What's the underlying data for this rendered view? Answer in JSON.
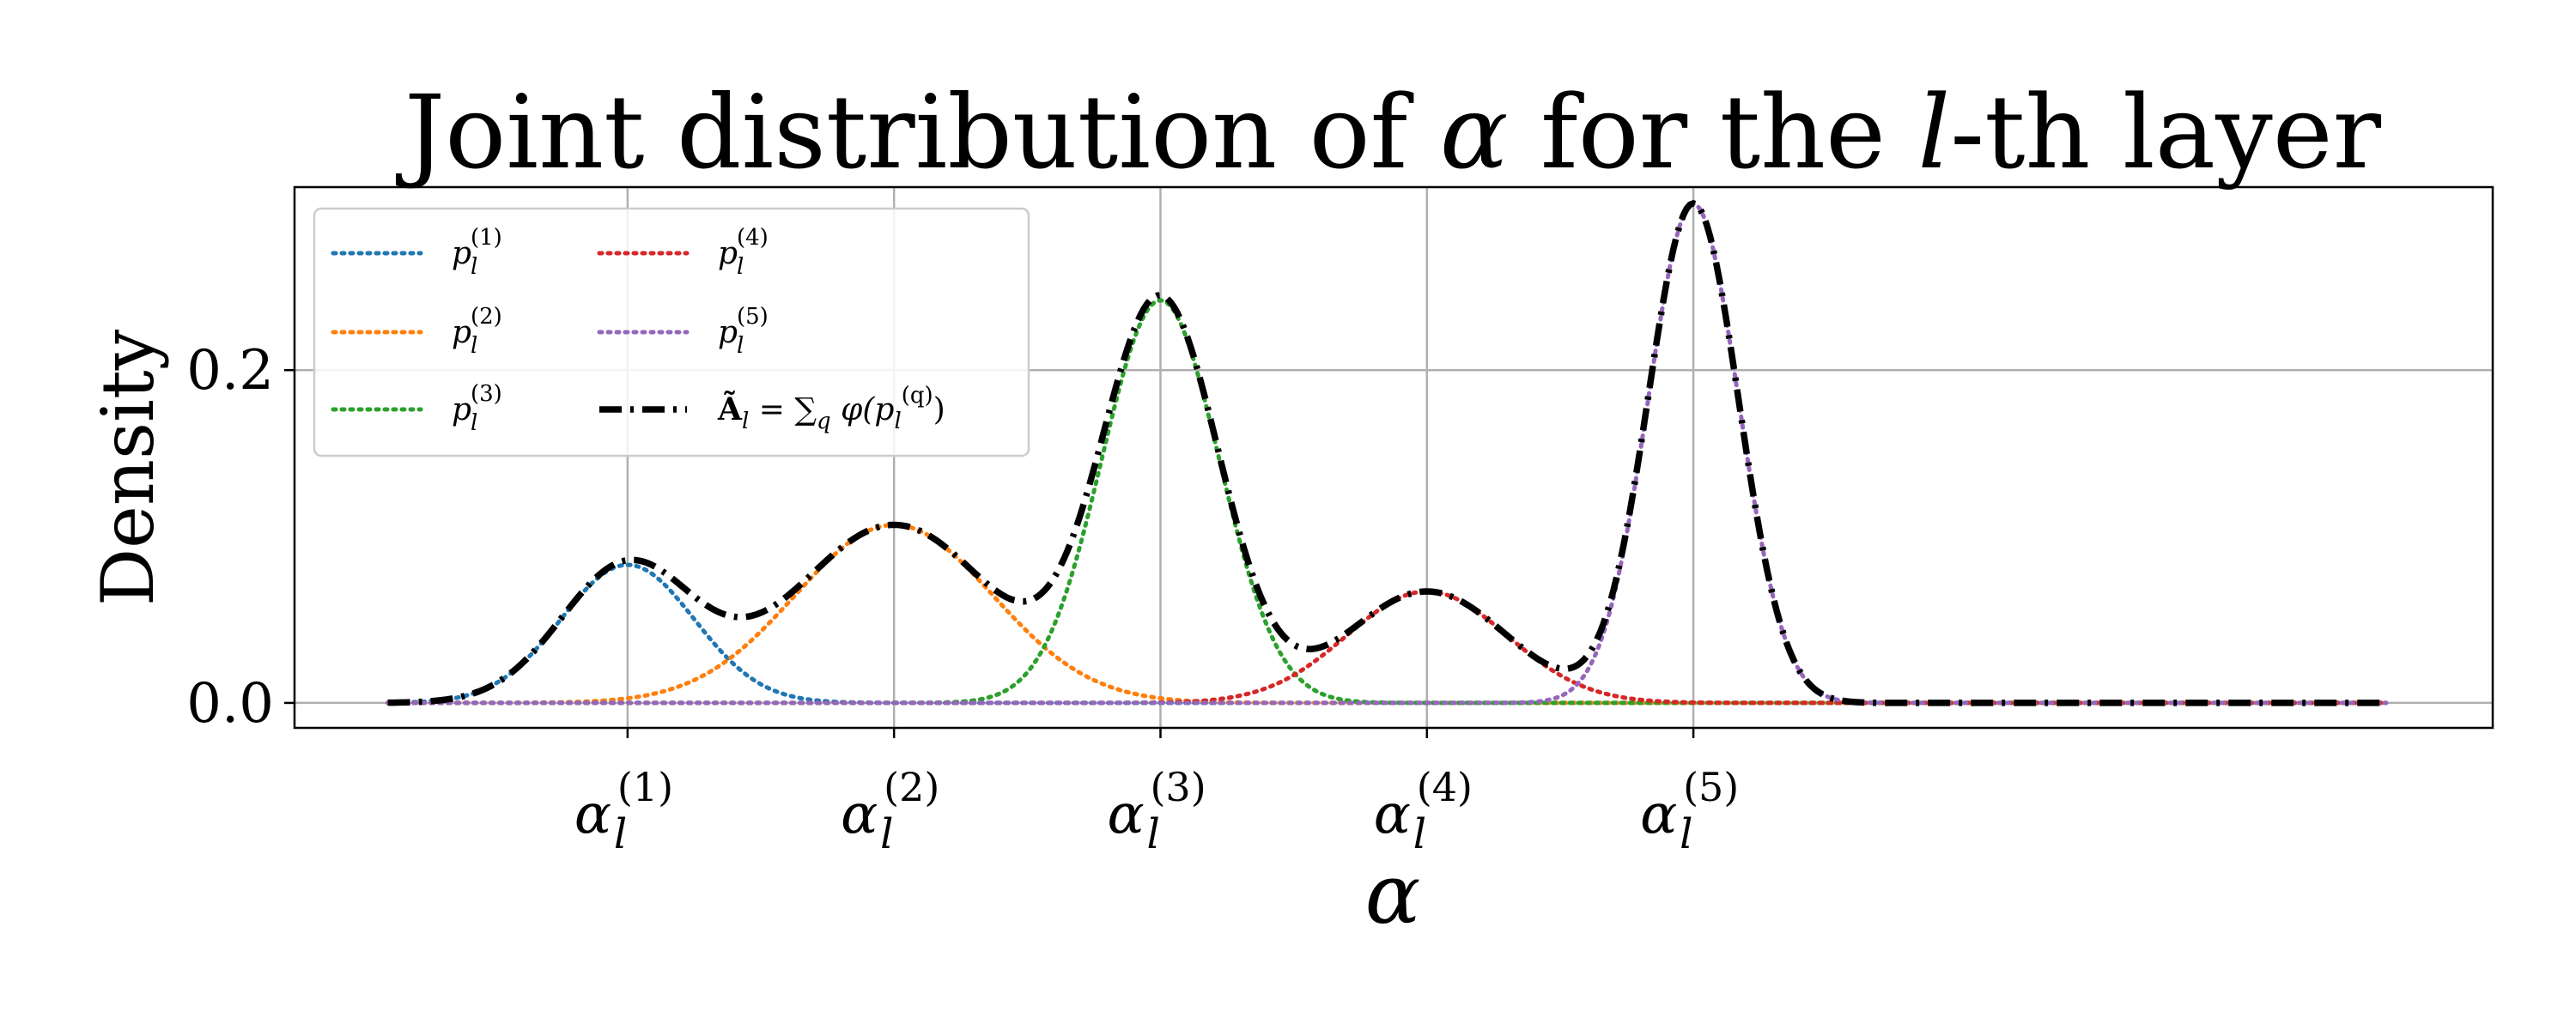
{
  "chart_data": {
    "type": "line",
    "title": "Joint distribution of α for the l-th layer",
    "title_parts": {
      "prefix": "Joint distribution of ",
      "alpha": "α",
      "mid": " for the ",
      "l": "l",
      "suffix": "-th layer"
    },
    "xlabel": "α",
    "ylabel": "Density",
    "xlim": [
      -1.25,
      7.0
    ],
    "ylim": [
      -0.015,
      0.31
    ],
    "x_range": [
      -0.9,
      6.6
    ],
    "grid": true,
    "legend_position": "upper-left",
    "legend_columns": 2,
    "x_ticks": [
      {
        "x": 0.0,
        "base": "α",
        "sub": "l",
        "sup": "(1)"
      },
      {
        "x": 1.0,
        "base": "α",
        "sub": "l",
        "sup": "(2)"
      },
      {
        "x": 2.0,
        "base": "α",
        "sub": "l",
        "sup": "(3)"
      },
      {
        "x": 3.0,
        "base": "α",
        "sub": "l",
        "sup": "(4)"
      },
      {
        "x": 4.0,
        "base": "α",
        "sub": "l",
        "sup": "(5)"
      }
    ],
    "y_ticks": [
      {
        "y": 0.0,
        "label": "0.0"
      },
      {
        "y": 0.2,
        "label": "0.2"
      }
    ],
    "series": [
      {
        "name": "p_l^(1)",
        "label_base": "p",
        "label_sub": "l",
        "label_sup": "(1)",
        "style": "dotted",
        "color": "#1f77b4",
        "center": 0.0,
        "sigma": 0.25,
        "peak": 0.083
      },
      {
        "name": "p_l^(2)",
        "label_base": "p",
        "label_sub": "l",
        "label_sup": "(2)",
        "style": "dotted",
        "color": "#ff7f0e",
        "center": 1.0,
        "sigma": 0.37,
        "peak": 0.107
      },
      {
        "name": "p_l^(3)",
        "label_base": "p",
        "label_sub": "l",
        "label_sup": "(3)",
        "style": "dotted",
        "color": "#2ca02c",
        "center": 2.0,
        "sigma": 0.22,
        "peak": 0.242
      },
      {
        "name": "p_l^(4)",
        "label_base": "p",
        "label_sub": "l",
        "label_sup": "(4)",
        "style": "dotted",
        "color": "#d62728",
        "center": 3.0,
        "sigma": 0.3,
        "peak": 0.067
      },
      {
        "name": "p_l^(5)",
        "label_base": "p",
        "label_sub": "l",
        "label_sup": "(5)",
        "style": "dotted",
        "color": "#9467bd",
        "center": 4.0,
        "sigma": 0.17,
        "peak": 0.3
      }
    ],
    "sum_series": {
      "name": "Ã_l = Σ_q φ(p_l^(q))",
      "label_main": "Ã",
      "label_main_sub": "l",
      "label_eq": " = ",
      "label_sum": "∑",
      "label_sum_sub": "q",
      "label_phi": " φ(p",
      "label_phi_sub": "l",
      "label_phi_sup": "(q)",
      "label_close": ")",
      "style": "dashdot",
      "color": "#000000"
    }
  }
}
